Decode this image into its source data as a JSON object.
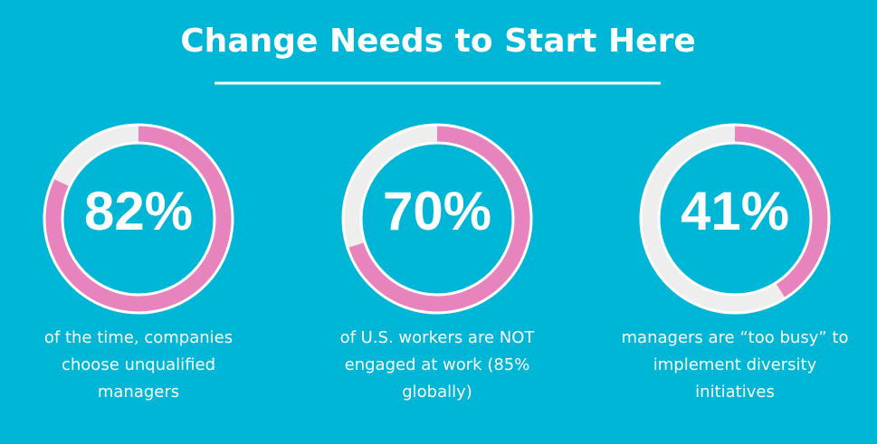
{
  "title": "Change Needs to Start Here",
  "chart_data": [
    {
      "type": "donut",
      "values": [
        82
      ],
      "value_labels": [
        "82%"
      ],
      "color": "#e884bd",
      "caption_lines": [
        "of the time, companies",
        "choose unqualified",
        "managers"
      ]
    },
    {
      "type": "donut",
      "values": [
        70
      ],
      "value_labels": [
        "70%"
      ],
      "color": "#e884bd",
      "caption_lines": [
        "of U.S. workers are NOT",
        "engaged at work (85%",
        "globally)"
      ]
    },
    {
      "type": "donut",
      "values": [
        41
      ],
      "value_labels": [
        "41%"
      ],
      "color": "#e884bd",
      "caption_lines": [
        "managers are “too busy” to",
        "implement diversity",
        "initiatives"
      ]
    }
  ]
}
